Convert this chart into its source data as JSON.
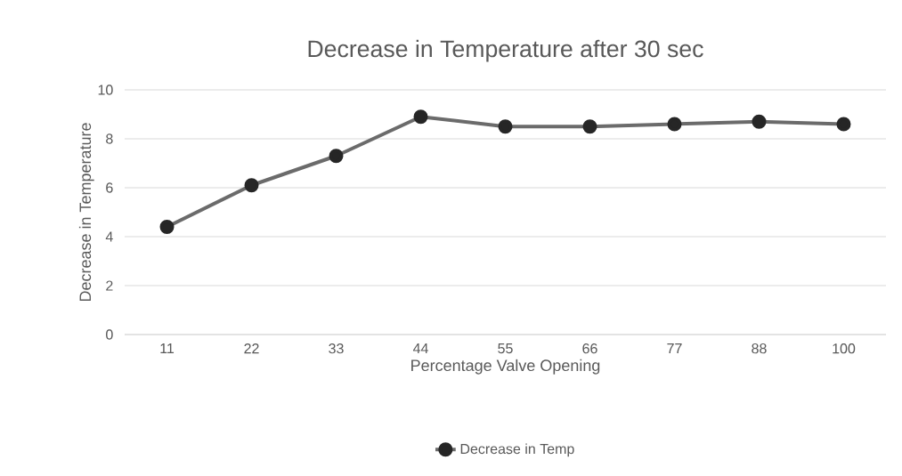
{
  "chart_data": {
    "type": "line",
    "title": "Decrease in Temperature after 30 sec",
    "xlabel": "Percentage Valve Opening",
    "ylabel": "Decrease in Temperature",
    "categories": [
      "11",
      "22",
      "33",
      "44",
      "55",
      "66",
      "77",
      "88",
      "100"
    ],
    "series": [
      {
        "name": "Decrease in Temp",
        "color": "#6b6b6b",
        "values": [
          4.4,
          6.1,
          7.3,
          8.9,
          8.5,
          8.5,
          8.6,
          8.7,
          8.6
        ]
      }
    ],
    "ylim": [
      0,
      10
    ],
    "yticks": [
      0,
      2,
      4,
      6,
      8,
      10
    ],
    "grid": "y",
    "legend": "bottom",
    "marker": "circle",
    "line_style": "solid"
  }
}
